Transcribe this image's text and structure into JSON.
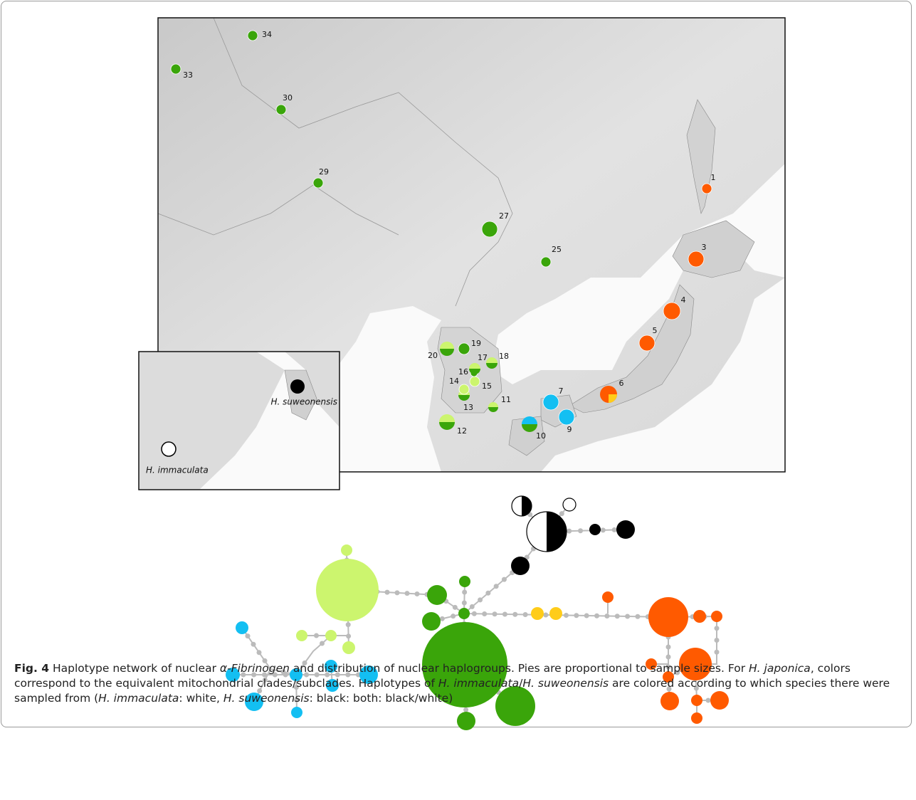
{
  "map": {
    "sites": [
      "34",
      "33",
      "30",
      "29",
      "27",
      "25",
      "1",
      "3",
      "4",
      "5",
      "6",
      "7",
      "9",
      "10",
      "11",
      "12",
      "13",
      "14",
      "15",
      "16",
      "17",
      "18",
      "19",
      "20"
    ],
    "inset": {
      "species_a": "H. suweonensis",
      "species_b": "H. immaculata"
    }
  },
  "caption": {
    "label": "Fig. 4",
    "parts": [
      " Haplotype network of nuclear ",
      "α-Fibrinogen",
      " and distribution of nuclear haplogroups. Pies are proportional to sample sizes. For ",
      "H. japonica",
      ", colors correspond to the equivalent mitochondrial clades/subclades. Haplotypes of ",
      "H. immaculata",
      "/",
      "H. suweonensis",
      " are colored according to which species there were sampled from (",
      "H. immaculata",
      ": white, ",
      "H. suweonensis",
      ": black: both: black/white)"
    ]
  }
}
